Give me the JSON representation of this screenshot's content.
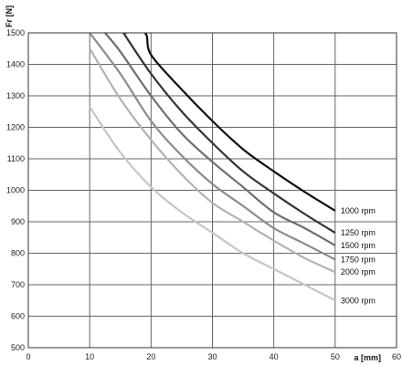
{
  "chart_data": {
    "type": "line",
    "title": "",
    "xlabel": "a [mm]",
    "ylabel": "Fr [N]",
    "xlim": [
      0,
      60
    ],
    "ylim": [
      500,
      1500
    ],
    "xticks": [
      0,
      10,
      20,
      30,
      40,
      50,
      60
    ],
    "yticks": [
      500,
      600,
      700,
      800,
      900,
      1000,
      1100,
      1200,
      1300,
      1400,
      1500
    ],
    "grid": true,
    "legend": "inline labels at right end of each curve",
    "series": [
      {
        "name": "1000 rpm",
        "color": "#111111",
        "x": [
          15.5,
          19,
          20,
          25,
          30,
          35,
          40,
          45,
          50
        ],
        "y": [
          1500,
          1500,
          1430,
          1320,
          1220,
          1130,
          1060,
          995,
          935
        ]
      },
      {
        "name": "1250 rpm",
        "color": "#333333",
        "x": [
          15.5,
          20,
          25,
          30,
          35,
          40,
          45,
          50
        ],
        "y": [
          1500,
          1370,
          1250,
          1150,
          1060,
          990,
          925,
          865
        ]
      },
      {
        "name": "1500 rpm",
        "color": "#6e6e6e",
        "x": [
          12.5,
          15,
          20,
          25,
          30,
          35,
          40,
          45,
          50
        ],
        "y": [
          1500,
          1440,
          1300,
          1180,
          1090,
          1010,
          930,
          880,
          825
        ]
      },
      {
        "name": "1750 rpm",
        "color": "#8c8c8c",
        "x": [
          10,
          15,
          20,
          25,
          30,
          35,
          40,
          45,
          50
        ],
        "y": [
          1500,
          1370,
          1220,
          1110,
          1020,
          950,
          880,
          830,
          780
        ]
      },
      {
        "name": "2000 rpm",
        "color": "#b2b2b2",
        "x": [
          10,
          15,
          20,
          25,
          30,
          35,
          40,
          45,
          50
        ],
        "y": [
          1450,
          1290,
          1160,
          1050,
          960,
          900,
          840,
          785,
          740
        ]
      },
      {
        "name": "3000 rpm",
        "color": "#c6c6c6",
        "x": [
          10,
          15,
          20,
          25,
          30,
          35,
          40,
          45,
          50
        ],
        "y": [
          1265,
          1120,
          1010,
          930,
          865,
          800,
          750,
          700,
          650
        ]
      }
    ]
  }
}
